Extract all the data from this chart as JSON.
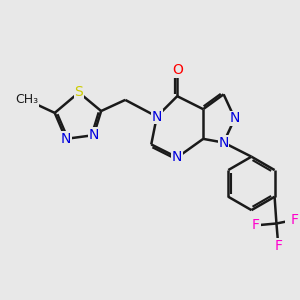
{
  "bg_color": "#e8e8e8",
  "bond_color": "#1a1a1a",
  "bond_width": 1.8,
  "dbo": 0.055,
  "atom_colors": {
    "N": "#0000dd",
    "O": "#ff0000",
    "S": "#cccc00",
    "F": "#ff00cc",
    "C": "#1a1a1a"
  },
  "fs": 10,
  "fs_small": 9
}
